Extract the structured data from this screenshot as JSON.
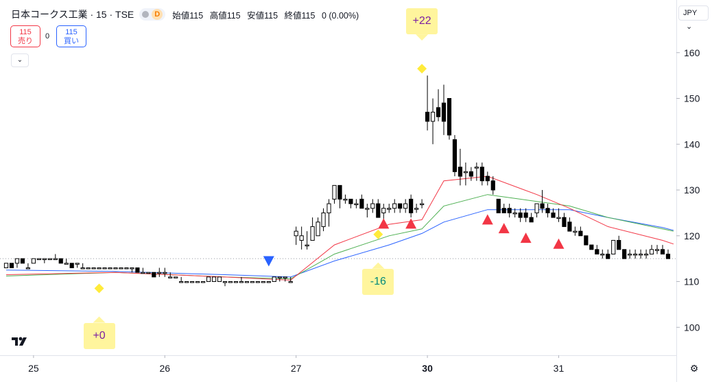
{
  "header": {
    "symbol": "日本コークス工業 · 15 · TSE",
    "badge_d": "D",
    "ohlc": [
      "始値115",
      "高値115",
      "安値115",
      "終値115",
      "0 (0.00%)"
    ]
  },
  "trade": {
    "sell_price": "115",
    "sell_label": "売り",
    "spread": "0",
    "buy_price": "115",
    "buy_label": "買い"
  },
  "currency": "JPY",
  "logo_text": "17",
  "colors": {
    "up": "#ffffff",
    "down": "#000000",
    "ma_red": "#f23645",
    "ma_green": "#4caf50",
    "ma_blue": "#2962ff",
    "marker_yellow": "#ffeb3b",
    "sell_signal": "#f23645",
    "buy_signal": "#2962ff"
  },
  "chart_data": {
    "type": "candlestick",
    "x_ticks": [
      "25",
      "26",
      "27",
      "30",
      "31"
    ],
    "x_tick_index": [
      5,
      29,
      53,
      77,
      101
    ],
    "y_ticks": [
      100,
      110,
      120,
      130,
      140,
      150,
      160
    ],
    "ylim": [
      93.9,
      171.5
    ],
    "last_price_line": 115,
    "candles": [
      [
        113,
        114,
        113,
        114
      ],
      [
        114,
        114,
        113,
        113
      ],
      [
        114,
        115,
        113,
        115
      ],
      [
        115,
        115,
        114,
        114
      ],
      [
        113,
        114,
        113,
        113
      ],
      [
        114,
        115,
        114,
        115
      ],
      [
        115,
        115,
        115,
        115
      ],
      [
        115,
        115,
        114,
        115
      ],
      [
        115,
        115,
        115,
        115
      ],
      [
        115,
        116,
        115,
        115
      ],
      [
        115,
        115,
        114,
        114
      ],
      [
        114,
        115,
        114,
        114
      ],
      [
        114,
        114,
        113,
        113
      ],
      [
        114,
        114,
        113,
        114
      ],
      [
        113,
        114,
        113,
        113
      ],
      [
        113,
        113,
        113,
        113
      ],
      [
        113,
        113,
        113,
        113
      ],
      [
        113,
        113,
        113,
        113
      ],
      [
        113,
        113,
        113,
        113
      ],
      [
        113,
        113,
        113,
        113
      ],
      [
        113,
        113,
        113,
        113
      ],
      [
        113,
        113,
        113,
        113
      ],
      [
        113,
        113,
        113,
        113
      ],
      [
        113,
        113,
        112,
        113
      ],
      [
        113,
        113,
        112,
        112
      ],
      [
        112,
        113,
        112,
        112
      ],
      [
        112,
        112,
        112,
        112
      ],
      [
        112,
        112,
        111,
        111
      ],
      [
        112,
        113,
        111,
        112
      ],
      [
        112,
        113,
        111,
        112
      ],
      [
        111,
        112,
        111,
        111
      ],
      [
        111,
        111,
        111,
        111
      ],
      [
        110,
        111,
        110,
        110
      ],
      [
        110,
        110,
        110,
        110
      ],
      [
        110,
        110,
        110,
        110
      ],
      [
        110,
        110,
        110,
        110
      ],
      [
        110,
        110,
        110,
        110
      ],
      [
        110,
        111,
        110,
        111
      ],
      [
        110,
        111,
        110,
        111
      ],
      [
        110,
        111,
        110,
        111
      ],
      [
        110,
        110,
        109,
        110
      ],
      [
        110,
        110,
        110,
        110
      ],
      [
        110,
        110,
        110,
        110
      ],
      [
        110,
        111,
        110,
        110
      ],
      [
        110,
        110,
        110,
        110
      ],
      [
        110,
        110,
        110,
        110
      ],
      [
        110,
        110,
        110,
        110
      ],
      [
        110,
        110,
        110,
        110
      ],
      [
        110,
        110,
        110,
        110
      ],
      [
        110,
        111,
        110,
        111
      ],
      [
        111,
        111,
        110,
        111
      ],
      [
        111,
        111,
        110,
        111
      ],
      [
        110,
        111,
        110,
        110
      ],
      [
        120,
        122,
        118,
        121
      ],
      [
        119,
        122,
        117,
        120
      ],
      [
        118,
        121,
        117,
        118
      ],
      [
        119,
        124,
        119,
        122
      ],
      [
        120,
        124,
        120,
        123
      ],
      [
        122,
        126,
        121,
        125
      ],
      [
        125,
        128,
        122,
        127
      ],
      [
        128,
        131,
        127,
        131
      ],
      [
        131,
        131,
        126,
        128
      ],
      [
        128,
        129,
        127,
        128
      ],
      [
        128,
        128,
        126,
        127
      ],
      [
        127,
        128,
        126,
        127
      ],
      [
        128,
        129,
        126,
        126
      ],
      [
        126,
        127,
        124,
        126
      ],
      [
        126,
        128,
        125,
        127
      ],
      [
        127,
        128,
        124,
        124
      ],
      [
        125,
        127,
        123,
        126
      ],
      [
        126,
        127,
        125,
        126
      ],
      [
        126,
        128,
        125,
        127
      ],
      [
        127,
        127,
        125,
        126
      ],
      [
        126,
        128,
        125,
        127
      ],
      [
        128,
        129,
        124,
        125
      ],
      [
        126,
        127,
        125,
        126
      ],
      [
        127,
        128,
        126,
        127
      ],
      [
        147,
        155,
        143,
        145
      ],
      [
        145,
        150,
        140,
        147
      ],
      [
        148,
        152,
        145,
        146
      ],
      [
        149,
        153,
        142,
        145
      ],
      [
        150,
        150,
        141,
        142
      ],
      [
        141,
        142,
        133,
        134
      ],
      [
        135,
        139,
        131,
        133
      ],
      [
        134,
        136,
        131,
        134
      ],
      [
        134,
        135,
        132,
        133
      ],
      [
        135,
        136,
        132,
        135
      ],
      [
        135,
        136,
        131,
        132
      ],
      [
        133,
        134,
        131,
        132
      ],
      [
        132,
        133,
        129,
        130
      ],
      [
        128,
        128,
        125,
        125
      ],
      [
        126,
        127,
        125,
        125
      ],
      [
        126,
        127,
        124,
        125
      ],
      [
        125,
        126,
        124,
        125
      ],
      [
        125,
        126,
        123,
        124
      ],
      [
        125,
        126,
        123,
        124
      ],
      [
        124,
        125,
        123,
        123
      ],
      [
        125,
        127,
        124,
        127
      ],
      [
        127,
        130,
        125,
        126
      ],
      [
        126,
        127,
        124,
        125
      ],
      [
        125,
        126,
        124,
        124
      ],
      [
        124,
        126,
        123,
        124
      ],
      [
        124,
        125,
        122,
        122
      ],
      [
        123,
        124,
        121,
        121
      ],
      [
        121,
        122,
        120,
        121
      ],
      [
        121,
        122,
        120,
        120
      ],
      [
        120,
        120,
        118,
        118
      ],
      [
        118,
        118,
        117,
        117
      ],
      [
        117,
        118,
        116,
        116
      ],
      [
        116,
        117,
        115,
        116
      ],
      [
        116,
        117,
        115,
        115
      ],
      [
        116,
        119,
        116,
        119
      ],
      [
        119,
        120,
        117,
        117
      ],
      [
        117,
        117,
        115,
        115
      ],
      [
        116,
        117,
        115,
        116
      ],
      [
        116,
        117,
        115,
        116
      ],
      [
        116,
        117,
        115,
        116
      ],
      [
        116,
        117,
        115,
        116
      ],
      [
        116,
        118,
        116,
        117
      ],
      [
        117,
        118,
        116,
        117
      ],
      [
        117,
        118,
        116,
        116
      ],
      [
        116,
        117,
        115,
        115
      ]
    ],
    "ma_red": [
      [
        0,
        111.5
      ],
      [
        20,
        112.0
      ],
      [
        40,
        111.0
      ],
      [
        52,
        110.3
      ],
      [
        60,
        118
      ],
      [
        70,
        122.5
      ],
      [
        76,
        123.5
      ],
      [
        80,
        132
      ],
      [
        88,
        133
      ],
      [
        97,
        129
      ],
      [
        103,
        126
      ],
      [
        110,
        122
      ],
      [
        120,
        119
      ],
      [
        122,
        118.2
      ]
    ],
    "ma_green": [
      [
        0,
        111.2
      ],
      [
        20,
        112.0
      ],
      [
        40,
        111.0
      ],
      [
        52,
        110.6
      ],
      [
        60,
        116
      ],
      [
        70,
        120
      ],
      [
        76,
        121.5
      ],
      [
        80,
        126.5
      ],
      [
        88,
        129
      ],
      [
        97,
        127.5
      ],
      [
        103,
        126.5
      ],
      [
        110,
        124
      ],
      [
        120,
        121.5
      ],
      [
        122,
        121
      ]
    ],
    "ma_blue": [
      [
        0,
        112.5
      ],
      [
        20,
        112.2
      ],
      [
        40,
        111.5
      ],
      [
        52,
        111.0
      ],
      [
        60,
        114.5
      ],
      [
        70,
        118
      ],
      [
        76,
        120.5
      ],
      [
        80,
        123
      ],
      [
        88,
        125.7
      ],
      [
        97,
        125.7
      ],
      [
        103,
        125.7
      ],
      [
        110,
        124
      ],
      [
        120,
        121.8
      ],
      [
        122,
        121.2
      ]
    ],
    "diamonds": [
      [
        17,
        108.5
      ],
      [
        68,
        120.3
      ],
      [
        76,
        156.5
      ]
    ],
    "sell_triangles": [
      [
        69,
        122.6
      ],
      [
        74,
        122.6
      ],
      [
        88,
        123.5
      ],
      [
        91,
        121.6
      ],
      [
        95,
        119.5
      ],
      [
        101,
        118.2
      ]
    ],
    "buy_triangles": [
      [
        48,
        114.5
      ]
    ],
    "callouts": [
      {
        "index": 17,
        "label": "+0",
        "color": "purple",
        "position": "below"
      },
      {
        "index": 68,
        "label": "-16",
        "color": "teal",
        "position": "below"
      },
      {
        "index": 76,
        "label": "+22",
        "color": "purple",
        "position": "above"
      }
    ]
  }
}
